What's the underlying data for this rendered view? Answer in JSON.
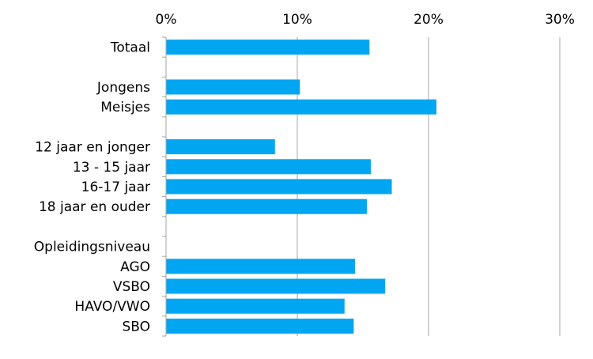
{
  "chart_data": {
    "type": "bar",
    "orientation": "horizontal",
    "categories": [
      "Totaal",
      "",
      "Jongens",
      "Meisjes",
      "",
      "12 jaar en jonger",
      "13 - 15 jaar",
      "16-17 jaar",
      "18 jaar en ouder",
      "",
      "Opleidingsniveau",
      "AGO",
      "VSBO",
      "HAVO/VWO",
      "SBO"
    ],
    "values": [
      15.5,
      null,
      10.2,
      20.6,
      null,
      8.3,
      15.6,
      17.2,
      15.3,
      null,
      null,
      14.4,
      16.7,
      13.6,
      14.3
    ],
    "xlim": [
      0,
      30
    ],
    "xticks": [
      0,
      10,
      20,
      30
    ],
    "tick_labels": [
      "0%",
      "10%",
      "20%",
      "30%"
    ],
    "x_axis_position": "top",
    "grid": true,
    "title": "",
    "xlabel": "",
    "ylabel": "",
    "bar_color": "#00A6F2"
  }
}
